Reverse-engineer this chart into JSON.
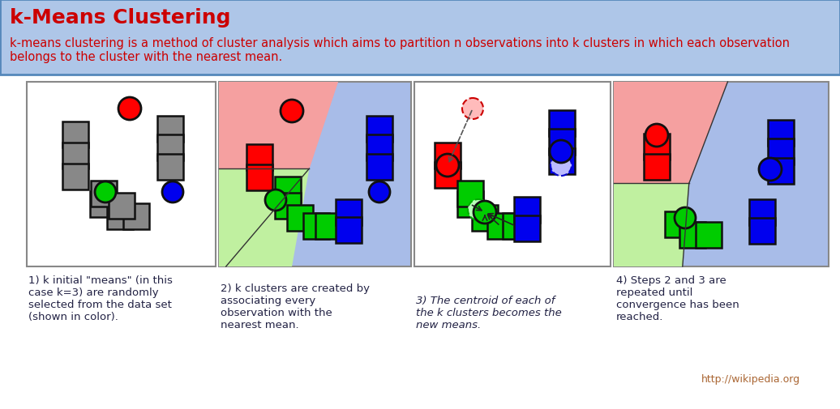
{
  "title": "k-Means Clustering",
  "subtitle": "k-means clustering is a method of cluster analysis which aims to partition n observations into k clusters in which each observation\nbelongs to the cluster with the nearest mean.",
  "header_bg": "#aec6e8",
  "header_border": "#5588bb",
  "title_color": "#cc0000",
  "subtitle_color": "#cc0000",
  "red_region": "#f5a0a0",
  "green_region": "#c0f0a0",
  "blue_region": "#a8bce8",
  "panel1_caption": "1) k initial \"means\" (in this\ncase k=3) are randomly\nselected from the data set\n(shown in color).",
  "panel2_caption": "2) k clusters are created by\nassociating every\nobservation with the\nnearest mean.",
  "panel3_caption": "3) The centroid of each of\nthe k clusters becomes the\nnew means.",
  "panel4_caption": "4) Steps 2 and 3 are\nrepeated until\nconvergence has been\nreached.",
  "wikipedia_text": "http://wikipedia.org",
  "cap_color": "#222244"
}
